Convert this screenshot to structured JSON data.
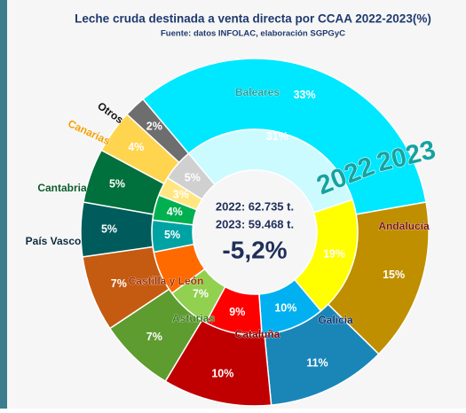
{
  "chart_data": {
    "type": "donut",
    "title": "Leche cruda destinada a venta directa por CCAA 2022-2023(%)",
    "subtitle": "Fuente: datos INFOLAC, elaboración SGPGyC",
    "categories": [
      "Baleares",
      "Andalucía",
      "Galicia",
      "Cataluña",
      "Asturias",
      "Castilla y León",
      "País Vasco",
      "Cantabria",
      "Canarias",
      "Otros"
    ],
    "series": [
      {
        "name": "2022",
        "values": [
          31,
          19,
          10,
          9,
          7,
          7,
          5,
          4,
          3,
          5
        ],
        "value_labels": [
          "31%",
          "19%",
          "10%",
          "9%",
          "7%",
          null,
          "5%",
          "4%",
          "3%",
          "5%"
        ],
        "colors": [
          "#ccfbff",
          "#ffff00",
          "#00b0f0",
          "#ff0000",
          "#92d050",
          "#ff6a00",
          "#00a3a3",
          "#00b050",
          "#ffe680",
          "#d0d0d0"
        ]
      },
      {
        "name": "2023",
        "values": [
          33,
          15,
          11,
          10,
          7,
          7,
          5,
          5,
          4,
          2
        ],
        "value_labels": [
          "33%",
          "15%",
          "11%",
          "10%",
          "7%",
          "7%",
          "5%",
          "5%",
          "4%",
          "2%"
        ],
        "colors": [
          "#00e8ff",
          "#bf8f00",
          "#1a86b8",
          "#c00000",
          "#5e9c2f",
          "#c55a11",
          "#005c5c",
          "#00703c",
          "#ffd54f",
          "#6e6e6e"
        ]
      }
    ],
    "center_lines": [
      "2022: 62.735 t.",
      "2023: 59.468 t."
    ],
    "change": "-5,2%"
  }
}
